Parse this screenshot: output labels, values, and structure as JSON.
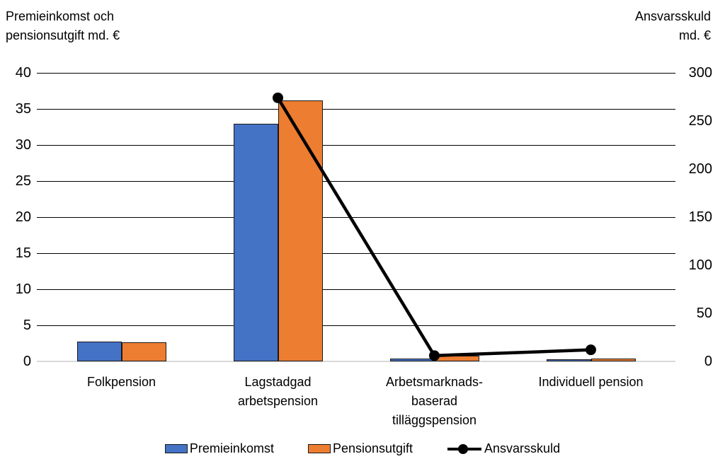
{
  "axis_titles": {
    "left_lines": [
      "Premieinkomst och",
      "pensionsutgift md. €"
    ],
    "right_lines": [
      "Ansvarsskuld",
      "md. €"
    ]
  },
  "chart_data": {
    "type": "combo-bar-line",
    "title": "",
    "categories": [
      "Folkpension",
      "Lagstadgad arbetspension",
      "Arbetsmarknadsbaserad tilläggspension",
      "Individuell pension"
    ],
    "categories_display": [
      "Folkpension",
      "Lagstadgad\narbetspension",
      "Arbetsmarknads-\nbaserad\ntilläggspension",
      "Individuell pension"
    ],
    "series": [
      {
        "name": "Premieinkomst",
        "type": "bar",
        "axis": "left",
        "color": "#4472C4",
        "values": [
          2.7,
          32.9,
          0.4,
          0.3
        ]
      },
      {
        "name": "Pensionsutgift",
        "type": "bar",
        "axis": "left",
        "color": "#ED7D31",
        "values": [
          2.6,
          36.2,
          0.8,
          0.4
        ]
      },
      {
        "name": "Ansvarsskuld",
        "type": "line",
        "axis": "right",
        "color": "#000000",
        "values": [
          null,
          274,
          6,
          12
        ]
      }
    ],
    "left_axis": {
      "title": "Premieinkomst och pensionsutgift md. €",
      "min": 0,
      "max": 40,
      "step": 5,
      "ticks": [
        40,
        35,
        30,
        25,
        20,
        15,
        10,
        5,
        0
      ]
    },
    "right_axis": {
      "title": "Ansvarsskuld md. €",
      "min": 0,
      "max": 300,
      "step": 50,
      "ticks": [
        300,
        250,
        200,
        150,
        100,
        50,
        0
      ]
    },
    "legend_position": "bottom",
    "grid": true,
    "colors": {
      "gridline": "#000000",
      "baseline": "#d9d9d9",
      "bar_border": "#1a1a1a",
      "line": "#000000",
      "background": "#ffffff",
      "text": "#000000"
    }
  }
}
